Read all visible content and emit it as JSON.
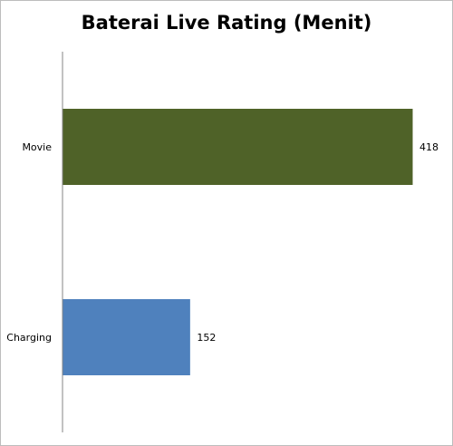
{
  "chart_data": {
    "type": "bar",
    "orientation": "horizontal",
    "title": "Baterai Live Rating (Menit)",
    "categories": [
      "Movie",
      "Charging"
    ],
    "values": [
      418,
      152
    ],
    "colors": [
      "#4f6228",
      "#4f81bd"
    ],
    "xlim": [
      0,
      450
    ],
    "grid": false,
    "legend": "none",
    "data_labels": true
  }
}
